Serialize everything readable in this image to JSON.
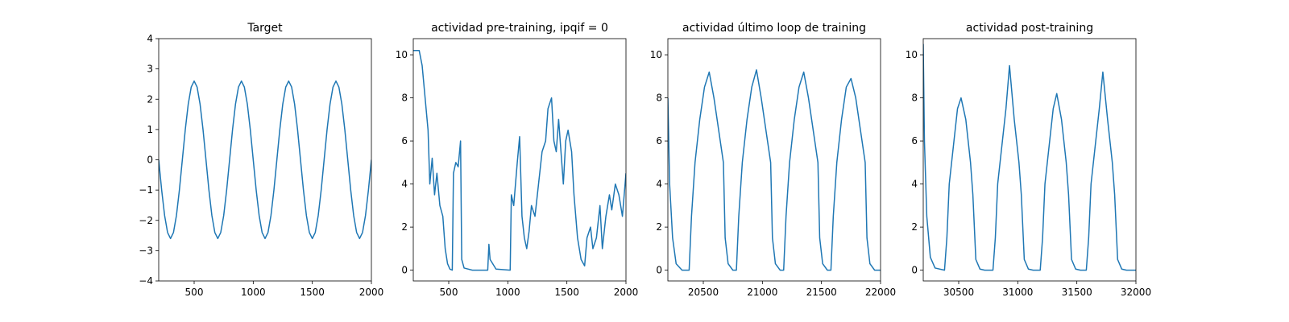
{
  "chart_data": [
    {
      "type": "line",
      "title": "Target",
      "color": "#1f77b4",
      "x": [
        200,
        225,
        250,
        275,
        300,
        325,
        350,
        375,
        400,
        425,
        450,
        475,
        500,
        525,
        550,
        575,
        600,
        625,
        650,
        675,
        700,
        725,
        750,
        775,
        800,
        825,
        850,
        875,
        900,
        925,
        950,
        975,
        1000,
        1025,
        1050,
        1075,
        1100,
        1125,
        1150,
        1175,
        1200,
        1225,
        1250,
        1275,
        1300,
        1325,
        1350,
        1375,
        1400,
        1425,
        1450,
        1475,
        1500,
        1525,
        1550,
        1575,
        1600,
        1625,
        1650,
        1675,
        1700,
        1725,
        1750,
        1775,
        1800,
        1825,
        1850,
        1875,
        1900,
        1925,
        1950,
        1975,
        2000
      ],
      "values": [
        0,
        -1,
        -1.84,
        -2.4,
        -2.6,
        -2.4,
        -1.84,
        -1,
        0,
        1,
        1.84,
        2.4,
        2.6,
        2.4,
        1.84,
        1,
        0,
        -1,
        -1.84,
        -2.4,
        -2.6,
        -2.4,
        -1.84,
        -1,
        0,
        1,
        1.84,
        2.4,
        2.6,
        2.4,
        1.84,
        1,
        0,
        -1,
        -1.84,
        -2.4,
        -2.6,
        -2.4,
        -1.84,
        -1,
        0,
        1,
        1.84,
        2.4,
        2.6,
        2.4,
        1.84,
        1,
        0,
        -1,
        -1.84,
        -2.4,
        -2.6,
        -2.4,
        -1.84,
        -1,
        0,
        1,
        1.84,
        2.4,
        2.6,
        2.4,
        1.84,
        1,
        0,
        -1,
        -1.84,
        -2.4,
        -2.6,
        -2.4,
        -1.84,
        -1,
        0
      ],
      "xlim": [
        200,
        2000
      ],
      "xticks": [
        500,
        1000,
        1500,
        2000
      ],
      "ylim": [
        -4,
        4
      ],
      "yticks": [
        {
          "value": -4,
          "label": "−4"
        },
        {
          "value": -3,
          "label": "−3"
        },
        {
          "value": -2,
          "label": "−2"
        },
        {
          "value": -1,
          "label": "−1"
        },
        0,
        1,
        2,
        3,
        4
      ]
    },
    {
      "type": "line",
      "title": "actividad pre-training, ipqif = 0",
      "color": "#1f77b4",
      "x": [
        200,
        250,
        275,
        300,
        325,
        340,
        360,
        380,
        400,
        425,
        450,
        470,
        490,
        510,
        530,
        540,
        560,
        580,
        600,
        610,
        630,
        700,
        830,
        840,
        850,
        900,
        1020,
        1030,
        1050,
        1080,
        1100,
        1120,
        1140,
        1160,
        1180,
        1200,
        1230,
        1260,
        1290,
        1320,
        1340,
        1370,
        1390,
        1410,
        1430,
        1450,
        1470,
        1490,
        1510,
        1540,
        1560,
        1590,
        1620,
        1650,
        1670,
        1700,
        1720,
        1750,
        1780,
        1800,
        1830,
        1860,
        1880,
        1910,
        1940,
        1970,
        2000
      ],
      "values": [
        10.2,
        10.2,
        9.5,
        8.0,
        6.5,
        4.0,
        5.2,
        3.5,
        4.5,
        3.0,
        2.5,
        1.0,
        0.3,
        0.05,
        0.0,
        4.5,
        5.0,
        4.8,
        6.0,
        0.5,
        0.1,
        0.0,
        0.0,
        1.2,
        0.5,
        0.05,
        0.0,
        3.5,
        3.0,
        5.0,
        6.2,
        2.5,
        1.5,
        1.0,
        1.8,
        3.0,
        2.5,
        4.0,
        5.5,
        6.0,
        7.5,
        8.0,
        6.0,
        5.5,
        7.0,
        5.5,
        4.0,
        6.0,
        6.5,
        5.5,
        3.5,
        1.5,
        0.5,
        0.2,
        1.5,
        2.0,
        1.0,
        1.5,
        3.0,
        1.0,
        2.5,
        3.5,
        2.8,
        4.0,
        3.5,
        2.5,
        4.5
      ],
      "xlim": [
        200,
        2000
      ],
      "xticks": [
        500,
        1000,
        1500,
        2000
      ],
      "ylim": [
        -0.5,
        10.75
      ],
      "yticks": [
        0,
        2,
        4,
        6,
        8,
        10
      ]
    },
    {
      "type": "line",
      "title": "actividad último loop de training",
      "color": "#1f77b4",
      "x": [
        20200,
        20215,
        20240,
        20270,
        20320,
        20380,
        20400,
        20430,
        20470,
        20510,
        20550,
        20590,
        20630,
        20670,
        20685,
        20710,
        20750,
        20780,
        20800,
        20830,
        20870,
        20910,
        20950,
        20990,
        21030,
        21070,
        21085,
        21110,
        21150,
        21180,
        21200,
        21230,
        21270,
        21310,
        21350,
        21390,
        21430,
        21470,
        21485,
        21510,
        21550,
        21580,
        21600,
        21630,
        21670,
        21710,
        21750,
        21790,
        21830,
        21870,
        21885,
        21910,
        21950,
        22000
      ],
      "values": [
        8.0,
        4.0,
        1.5,
        0.3,
        0,
        0,
        2.5,
        5,
        7,
        8.5,
        9.2,
        8,
        6.5,
        5,
        1.5,
        0.3,
        0,
        0,
        2.5,
        5,
        7,
        8.5,
        9.3,
        8,
        6.5,
        5,
        1.5,
        0.3,
        0,
        0,
        2.5,
        5,
        7,
        8.5,
        9.2,
        8,
        6.5,
        5,
        1.5,
        0.3,
        0,
        0,
        2.5,
        5,
        7,
        8.5,
        8.9,
        8,
        6.5,
        5,
        1.5,
        0.3,
        0,
        0
      ],
      "xlim": [
        20200,
        22000
      ],
      "xticks": [
        20500,
        21000,
        21500,
        22000
      ],
      "ylim": [
        -0.5,
        10.75
      ],
      "yticks": [
        0,
        2,
        4,
        6,
        8,
        10
      ]
    },
    {
      "type": "line",
      "title": "actividad post-training",
      "color": "#1f77b4",
      "x": [
        30200,
        30210,
        30230,
        30260,
        30300,
        30380,
        30400,
        30420,
        30460,
        30490,
        30520,
        30560,
        30600,
        30620,
        30645,
        30680,
        30720,
        30790,
        30810,
        30830,
        30870,
        30900,
        30930,
        30970,
        31010,
        31030,
        31055,
        31090,
        31130,
        31190,
        31210,
        31230,
        31270,
        31300,
        31330,
        31370,
        31410,
        31430,
        31455,
        31490,
        31530,
        31580,
        31600,
        31620,
        31660,
        31690,
        31720,
        31760,
        31800,
        31820,
        31845,
        31880,
        31920,
        32000
      ],
      "values": [
        10.5,
        6.0,
        2.5,
        0.6,
        0.1,
        0,
        1.5,
        4,
        6,
        7.5,
        8.0,
        7,
        5,
        3.5,
        0.5,
        0.05,
        0,
        0,
        1.5,
        4,
        6,
        7.5,
        9.5,
        7,
        5,
        3.5,
        0.5,
        0.05,
        0,
        0,
        1.5,
        4,
        6,
        7.5,
        8.2,
        7,
        5,
        3.5,
        0.5,
        0.05,
        0,
        0,
        1.5,
        4,
        6,
        7.5,
        9.2,
        7,
        5,
        3.5,
        0.5,
        0.05,
        0,
        0
      ],
      "xlim": [
        30200,
        32000
      ],
      "xticks": [
        30500,
        31000,
        31500,
        32000
      ],
      "ylim": [
        -0.5,
        10.75
      ],
      "yticks": [
        0,
        2,
        4,
        6,
        8,
        10
      ]
    }
  ]
}
